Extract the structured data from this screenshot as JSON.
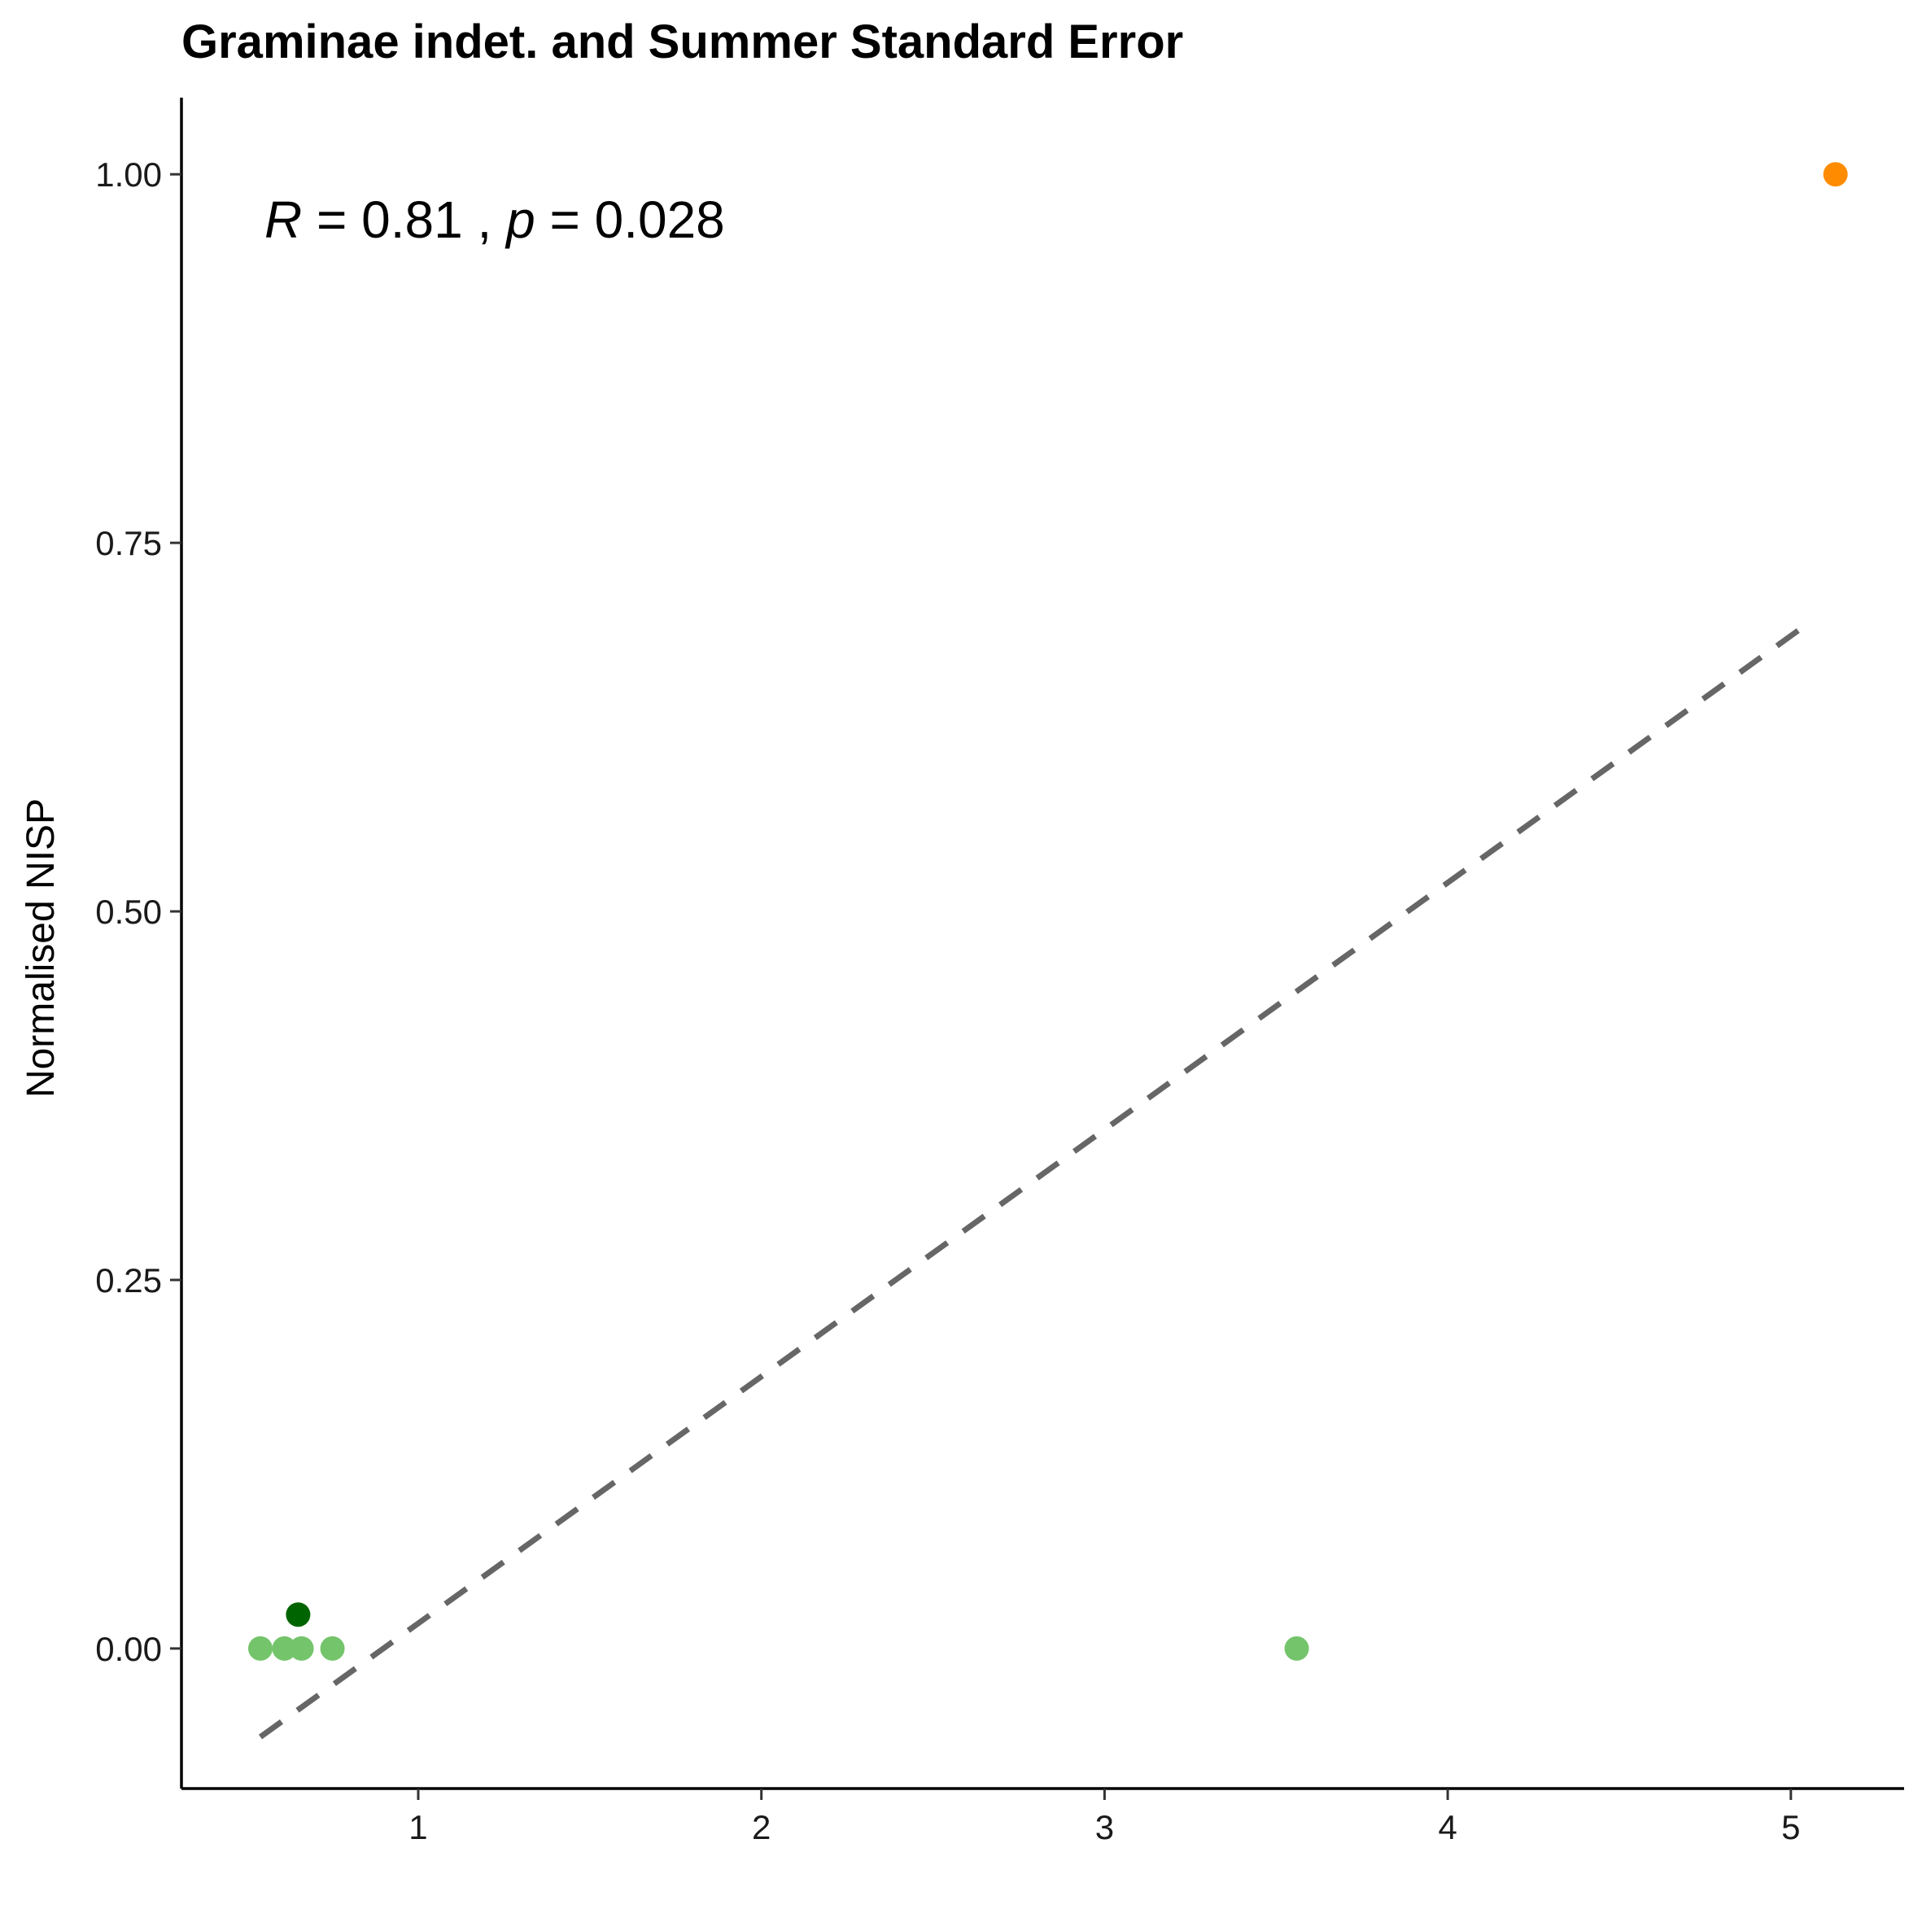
{
  "chart_data": {
    "type": "scatter",
    "title": "Graminae indet. and Summer Standard Error",
    "xlabel": "",
    "ylabel": "Normalised NISP",
    "xlim": [
      0.31,
      5.33
    ],
    "ylim": [
      -0.095,
      1.052
    ],
    "x_ticks": [
      1,
      2,
      3,
      4,
      5
    ],
    "x_tick_labels": [
      "1",
      "2",
      "3",
      "4",
      "5"
    ],
    "y_ticks": [
      0.0,
      0.25,
      0.5,
      0.75,
      1.0
    ],
    "y_tick_labels": [
      "0.00",
      "0.25",
      "0.50",
      "0.75",
      "1.00"
    ],
    "grid": false,
    "points": [
      {
        "x": 0.54,
        "y": 0.0,
        "color": "#74c46b"
      },
      {
        "x": 0.61,
        "y": 0.0,
        "color": "#74c46b"
      },
      {
        "x": 0.66,
        "y": 0.0,
        "color": "#74c46b"
      },
      {
        "x": 0.75,
        "y": 0.0,
        "color": "#74c46b"
      },
      {
        "x": 3.56,
        "y": 0.0,
        "color": "#74c46b"
      },
      {
        "x": 0.65,
        "y": 0.023,
        "color": "#006400"
      },
      {
        "x": 5.13,
        "y": 1.0,
        "color": "#ff8c00"
      }
    ],
    "trend_line": {
      "x": [
        0.54,
        5.06
      ],
      "y": [
        -0.06,
        0.697
      ],
      "color": "#666666",
      "style": "dashed"
    },
    "annotation": {
      "r_symbol": "R",
      "r_value": "0.81",
      "p_symbol": "p",
      "p_value": "0.028",
      "separator": ","
    }
  }
}
